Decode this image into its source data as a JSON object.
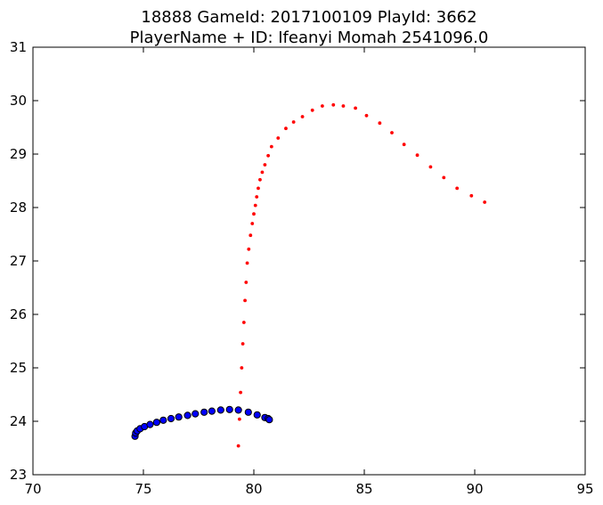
{
  "chart_data": {
    "type": "scatter",
    "title_line1": "18888 GameId: 2017100109 PlayId: 3662",
    "title_line2": "PlayerName + ID: Ifeanyi Momah 2541096.0",
    "xlabel": "",
    "ylabel": "",
    "xlim": [
      70,
      95
    ],
    "ylim": [
      23,
      31
    ],
    "xticks": [
      70,
      75,
      80,
      85,
      90,
      95
    ],
    "yticks": [
      23,
      24,
      25,
      26,
      27,
      28,
      29,
      30,
      31
    ],
    "grid": false,
    "series": [
      {
        "marker": "small-dot",
        "color": "#ff0000",
        "points": [
          [
            79.3,
            23.54
          ],
          [
            79.35,
            24.04
          ],
          [
            79.4,
            24.54
          ],
          [
            79.45,
            25.0
          ],
          [
            79.5,
            25.45
          ],
          [
            79.55,
            25.85
          ],
          [
            79.6,
            26.26
          ],
          [
            79.65,
            26.6
          ],
          [
            79.7,
            26.96
          ],
          [
            79.77,
            27.22
          ],
          [
            79.85,
            27.48
          ],
          [
            79.93,
            27.7
          ],
          [
            80.0,
            27.88
          ],
          [
            80.07,
            28.04
          ],
          [
            80.13,
            28.2
          ],
          [
            80.2,
            28.36
          ],
          [
            80.28,
            28.52
          ],
          [
            80.38,
            28.66
          ],
          [
            80.5,
            28.8
          ],
          [
            80.65,
            28.97
          ],
          [
            80.8,
            29.14
          ],
          [
            81.1,
            29.3
          ],
          [
            81.45,
            29.48
          ],
          [
            81.8,
            29.6
          ],
          [
            82.2,
            29.7
          ],
          [
            82.65,
            29.82
          ],
          [
            83.1,
            29.9
          ],
          [
            83.6,
            29.92
          ],
          [
            84.05,
            29.9
          ],
          [
            84.6,
            29.86
          ],
          [
            85.1,
            29.72
          ],
          [
            85.7,
            29.58
          ],
          [
            86.25,
            29.4
          ],
          [
            86.8,
            29.18
          ],
          [
            87.4,
            28.98
          ],
          [
            88.0,
            28.76
          ],
          [
            88.6,
            28.56
          ],
          [
            89.2,
            28.36
          ],
          [
            89.85,
            28.22
          ],
          [
            90.45,
            28.1
          ]
        ]
      },
      {
        "marker": "circle",
        "color": "#0000ff",
        "points": [
          [
            74.62,
            23.72
          ],
          [
            74.65,
            23.78
          ],
          [
            74.72,
            23.82
          ],
          [
            74.85,
            23.86
          ],
          [
            75.05,
            23.9
          ],
          [
            75.3,
            23.94
          ],
          [
            75.6,
            23.98
          ],
          [
            75.9,
            24.02
          ],
          [
            76.25,
            24.05
          ],
          [
            76.6,
            24.08
          ],
          [
            77.0,
            24.11
          ],
          [
            77.35,
            24.14
          ],
          [
            77.75,
            24.17
          ],
          [
            78.1,
            24.19
          ],
          [
            78.5,
            24.21
          ],
          [
            78.9,
            24.22
          ],
          [
            79.3,
            24.21
          ],
          [
            79.75,
            24.17
          ],
          [
            80.15,
            24.12
          ],
          [
            80.5,
            24.07
          ],
          [
            80.65,
            24.05
          ],
          [
            80.7,
            24.03
          ]
        ]
      }
    ]
  }
}
